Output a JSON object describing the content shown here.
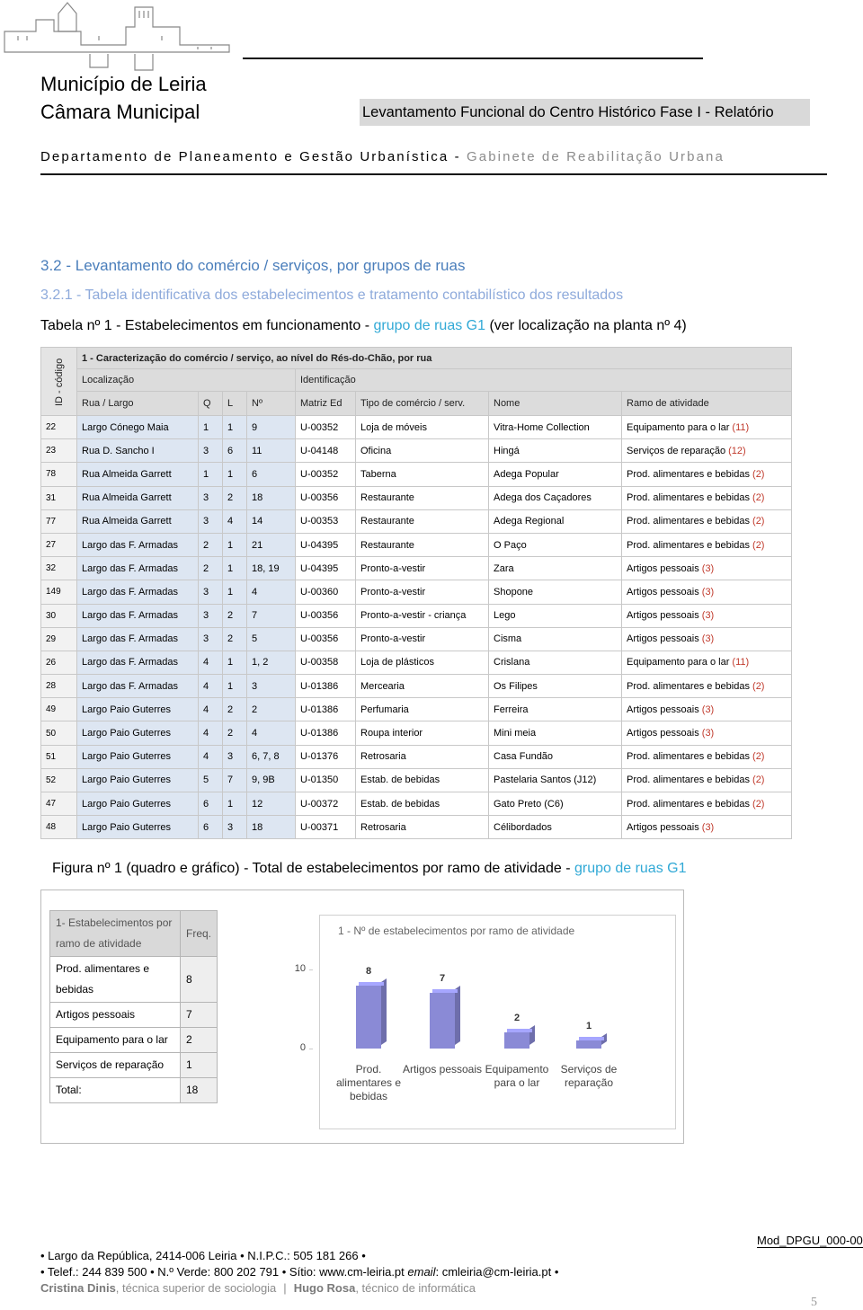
{
  "header": {
    "org_name": "Município de Leiria",
    "org_sub": "Câmara Municipal",
    "report_title": "Levantamento Funcional do Centro Histórico Fase I - Relatório",
    "department": "Departamento de Planeamento e Gestão Urbanística - ",
    "unit": "Gabinete de Reabilitação Urbana"
  },
  "section_title": "3.2 - Levantamento do comércio / serviços, por grupos de ruas",
  "subsection_title": "3.2.1 - Tabela identificativa dos estabelecimentos e tratamento contabilístico dos resultados",
  "table_caption": {
    "prefix": "Tabela nº 1 - Estabelecimentos em funcionamento - ",
    "group": "grupo de ruas G1",
    "suffix": " (ver localização na planta nº 4)"
  },
  "table": {
    "id_label": "ID - código",
    "group_title": "1 - Caracterização do comércio / serviço, ao nível do Rés-do-Chão, por rua",
    "location_label": "Localização",
    "identification_label": "Identificação",
    "columns": [
      "Rua / Largo",
      "Q",
      "L",
      "Nº",
      "Matriz Ed",
      "Tipo de comércio / serv.",
      "Nome",
      "Ramo de atividade"
    ],
    "rows": [
      [
        "22",
        "Largo Cónego Maia",
        "1",
        "1",
        "9",
        "U-00352",
        "Loja de móveis",
        "Vitra-Home Collection",
        "Equipamento para o lar",
        "(11)"
      ],
      [
        "23",
        "Rua D. Sancho I",
        "3",
        "6",
        "11",
        "U-04148",
        "Oficina",
        "Hingá",
        "Serviços de reparação",
        "(12)"
      ],
      [
        "78",
        "Rua Almeida Garrett",
        "1",
        "1",
        "6",
        "U-00352",
        "Taberna",
        "Adega Popular",
        "Prod. alimentares e bebidas",
        "(2)"
      ],
      [
        "31",
        "Rua Almeida Garrett",
        "3",
        "2",
        "18",
        "U-00356",
        "Restaurante",
        "Adega dos Caçadores",
        "Prod. alimentares e bebidas",
        "(2)"
      ],
      [
        "77",
        "Rua Almeida Garrett",
        "3",
        "4",
        "14",
        "U-00353",
        "Restaurante",
        "Adega Regional",
        "Prod. alimentares e bebidas",
        "(2)"
      ],
      [
        "27",
        "Largo das F. Armadas",
        "2",
        "1",
        "21",
        "U-04395",
        "Restaurante",
        "O Paço",
        "Prod. alimentares e bebidas",
        "(2)"
      ],
      [
        "32",
        "Largo das F. Armadas",
        "2",
        "1",
        "18, 19",
        "U-04395",
        "Pronto-a-vestir",
        "Zara",
        "Artigos pessoais",
        "(3)"
      ],
      [
        "149",
        "Largo das F. Armadas",
        "3",
        "1",
        "4",
        "U-00360",
        "Pronto-a-vestir",
        "Shopone",
        "Artigos pessoais",
        "(3)"
      ],
      [
        "30",
        "Largo das F. Armadas",
        "3",
        "2",
        "7",
        "U-00356",
        "Pronto-a-vestir - criança",
        "Lego",
        "Artigos pessoais",
        "(3)"
      ],
      [
        "29",
        "Largo das F. Armadas",
        "3",
        "2",
        "5",
        "U-00356",
        "Pronto-a-vestir",
        "Cisma",
        "Artigos pessoais",
        "(3)"
      ],
      [
        "26",
        "Largo das F. Armadas",
        "4",
        "1",
        "1, 2",
        "U-00358",
        "Loja de plásticos",
        "Crislana",
        "Equipamento para o lar",
        "(11)"
      ],
      [
        "28",
        "Largo das F. Armadas",
        "4",
        "1",
        "3",
        "U-01386",
        "Mercearia",
        "Os Filipes",
        "Prod. alimentares e bebidas",
        "(2)"
      ],
      [
        "49",
        "Largo Paio Guterres",
        "4",
        "2",
        "2",
        "U-01386",
        "Perfumaria",
        "Ferreira",
        "Artigos pessoais",
        "(3)"
      ],
      [
        "50",
        "Largo Paio Guterres",
        "4",
        "2",
        "4",
        "U-01386",
        "Roupa interior",
        "Mini meia",
        "Artigos pessoais",
        "(3)"
      ],
      [
        "51",
        "Largo Paio Guterres",
        "4",
        "3",
        "6, 7, 8",
        "U-01376",
        "Retrosaria",
        "Casa Fundão",
        "Prod. alimentares e bebidas",
        "(2)"
      ],
      [
        "52",
        "Largo Paio Guterres",
        "5",
        "7",
        "9, 9B",
        "U-01350",
        "Estab. de bebidas",
        "Pastelaria Santos (J12)",
        "Prod. alimentares e bebidas",
        "(2)"
      ],
      [
        "47",
        "Largo Paio Guterres",
        "6",
        "1",
        "12",
        "U-00372",
        "Estab. de bebidas",
        "Gato Preto (C6)",
        "Prod. alimentares e bebidas",
        "(2)"
      ],
      [
        "48",
        "Largo Paio Guterres",
        "6",
        "3",
        "18",
        "U-00371",
        "Retrosaria",
        "Célibordados",
        "Artigos pessoais",
        "(3)"
      ]
    ]
  },
  "figure_caption": {
    "prefix": "Figura nº 1 (quadro e gráfico) - Total de estabelecimentos por ramo de atividade - ",
    "group": "grupo de ruas G1"
  },
  "freq_table": {
    "header": "1- Estabelecimentos por ramo de atividade",
    "freq_label": "Freq.",
    "rows": [
      {
        "label": "Prod. alimentares e bebidas",
        "freq": 8
      },
      {
        "label": "Artigos pessoais",
        "freq": 7
      },
      {
        "label": "Equipamento para o lar",
        "freq": 2
      },
      {
        "label": "Serviços de reparação",
        "freq": 1
      }
    ],
    "total_label": "Total:",
    "total": 18
  },
  "chart_data": {
    "type": "bar",
    "title": "1 - Nº de estabelecimentos por ramo de atividade",
    "categories": [
      "Prod. alimentares e bebidas",
      "Artigos pessoais",
      "Equipamento para o lar",
      "Serviços de reparação"
    ],
    "values": [
      8,
      7,
      2,
      1
    ],
    "color": "#8a8ad6",
    "ylim": [
      0,
      10
    ],
    "yticks": [
      0,
      10
    ]
  },
  "footer": {
    "address": "• Largo da República, 2414-006 Leiria • N.I.P.C.: 505 181 266 •",
    "contacts": "• Telef.: 244 839 500 • N.º Verde: 800 202 791 • Sítio: www.cm-leiria.pt ",
    "email_label": "email",
    "email": ": cmleiria@cm-leiria.pt •",
    "credits": {
      "name1": "Cristina Dinis",
      "role1": ", técnica superior de sociologia",
      "separator": "|",
      "name2": "Hugo Rosa",
      "role2": ", técnico de informática"
    },
    "form_code": "Mod_DPGU_000-00",
    "page": "5"
  }
}
